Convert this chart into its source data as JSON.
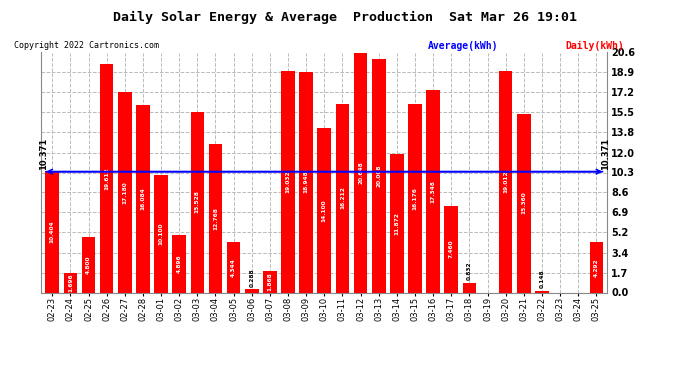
{
  "title": "Daily Solar Energy & Average  Production  Sat Mar 26 19:01",
  "copyright": "Copyright 2022 Cartronics.com",
  "legend_avg": "Average(kWh)",
  "legend_daily": "Daily(kWh)",
  "average_value": 10.371,
  "categories": [
    "02-23",
    "02-24",
    "02-25",
    "02-26",
    "02-27",
    "02-28",
    "03-01",
    "03-02",
    "03-03",
    "03-04",
    "03-05",
    "03-06",
    "03-07",
    "03-08",
    "03-09",
    "03-10",
    "03-11",
    "03-12",
    "03-13",
    "03-14",
    "03-15",
    "03-16",
    "03-17",
    "03-18",
    "03-19",
    "03-20",
    "03-21",
    "03-22",
    "03-23",
    "03-24",
    "03-25"
  ],
  "values": [
    10.404,
    1.696,
    4.8,
    19.612,
    17.18,
    16.084,
    10.1,
    4.896,
    15.528,
    12.768,
    4.344,
    0.288,
    1.868,
    19.032,
    18.948,
    14.1,
    16.212,
    20.648,
    20.008,
    11.872,
    16.176,
    17.348,
    7.46,
    0.832,
    0.0,
    19.012,
    15.36,
    0.148,
    0.0,
    0.0,
    4.292
  ],
  "bar_color": "#ff0000",
  "avg_line_color": "#0000ff",
  "background_color": "#ffffff",
  "grid_color": "#bbbbbb",
  "title_color": "#000000",
  "copyright_color": "#000000",
  "legend_avg_color": "#0000ff",
  "legend_daily_color": "#ff0000",
  "ylim": [
    0.0,
    20.6
  ],
  "yticks": [
    0.0,
    1.7,
    3.4,
    5.2,
    6.9,
    8.6,
    10.3,
    12.0,
    13.8,
    15.5,
    17.2,
    18.9,
    20.6
  ]
}
